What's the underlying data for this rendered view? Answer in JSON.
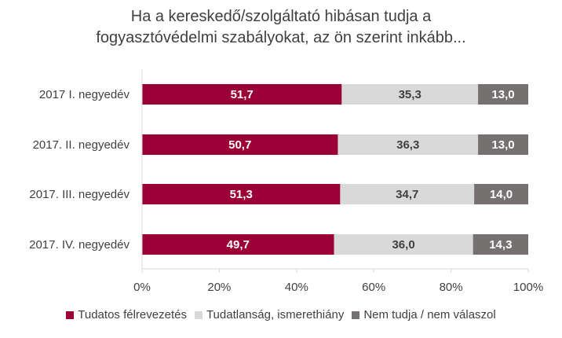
{
  "chart_data": {
    "type": "bar",
    "orientation": "horizontal",
    "stacked": true,
    "title_lines": [
      "Ha a kereskedő/szolgáltató hibásan tudja a",
      "fogyasztóvédelmi szabályokat, az ön szerint inkább..."
    ],
    "categories": [
      "2017 I. negyedév",
      "2017. II. negyedév",
      "2017. III. negyedév",
      "2017. IV. negyedév"
    ],
    "series": [
      {
        "name": "Tudatos félrevezetés",
        "values": [
          51.7,
          50.7,
          51.3,
          49.7
        ],
        "color": "#9b0036",
        "label_color": "#ffffff"
      },
      {
        "name": "Tudatlanság, ismerethiány",
        "values": [
          35.3,
          36.3,
          34.7,
          36.0
        ],
        "color": "#d9d9d9",
        "label_color": "#404040"
      },
      {
        "name": "Nem tudja / nem válaszol",
        "values": [
          13.0,
          13.0,
          14.0,
          14.3
        ],
        "color": "#767171",
        "label_color": "#ffffff"
      }
    ],
    "value_labels": [
      [
        "51,7",
        "35,3",
        "13,0"
      ],
      [
        "50,7",
        "36,3",
        "13,0"
      ],
      [
        "51,3",
        "34,7",
        "14,0"
      ],
      [
        "49,7",
        "36,0",
        "14,3"
      ]
    ],
    "xlim": [
      0,
      100
    ],
    "x_ticks": [
      "0%",
      "20%",
      "40%",
      "60%",
      "80%",
      "100%"
    ],
    "grid": false,
    "legend_position": "bottom"
  }
}
